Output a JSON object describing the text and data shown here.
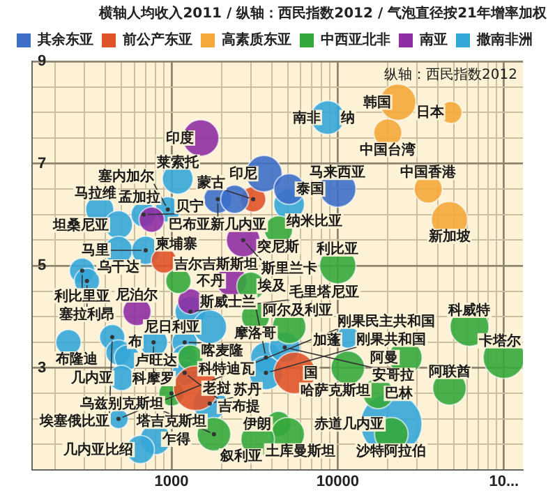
{
  "chart_data": {
    "type": "bubble",
    "title": "横轴人均收入2011 / 纵轴：西民指数2012 / 气泡直径按21年增率加权",
    "log": "x",
    "grid": true,
    "legend": "top",
    "xlim": [
      145,
      130000
    ],
    "ylim": [
      1,
      9
    ],
    "xticks": [
      {
        "value": 200,
        "label": null
      },
      {
        "value": 300,
        "label": null
      },
      {
        "value": 400,
        "label": null
      },
      {
        "value": 500,
        "label": null
      },
      {
        "value": 600,
        "label": null
      },
      {
        "value": 700,
        "label": null
      },
      {
        "value": 800,
        "label": null
      },
      {
        "value": 900,
        "label": null
      },
      1000,
      {
        "value": 2000,
        "label": null
      },
      {
        "value": 3000,
        "label": null
      },
      {
        "value": 4000,
        "label": null
      },
      {
        "value": 5000,
        "label": null
      },
      {
        "value": 6000,
        "label": null
      },
      {
        "value": 7000,
        "label": null
      },
      {
        "value": 8000,
        "label": null
      },
      {
        "value": 9000,
        "label": null
      },
      10000,
      {
        "value": 20000,
        "label": null
      },
      {
        "value": 30000,
        "label": null
      },
      {
        "value": 40000,
        "label": null
      },
      {
        "value": 50000,
        "label": null
      },
      {
        "value": 60000,
        "label": null
      },
      {
        "value": 70000,
        "label": null
      },
      {
        "value": 80000,
        "label": null
      },
      {
        "value": 90000,
        "label": null
      },
      {
        "value": 100000,
        "label": "10..."
      }
    ],
    "yticks": [
      {
        "value": 1.5,
        "label": null
      },
      {
        "value": 2,
        "label": null
      },
      {
        "value": 2.5,
        "label": null
      },
      3,
      {
        "value": 3.5,
        "label": null
      },
      {
        "value": 4,
        "label": null
      },
      {
        "value": 4.5,
        "label": null
      },
      5,
      {
        "value": 5.5,
        "label": null
      },
      {
        "value": 6,
        "label": null
      },
      {
        "value": 6.5,
        "label": null
      },
      7,
      {
        "value": 7.5,
        "label": null
      },
      {
        "value": 8,
        "label": null
      },
      {
        "value": 8.5,
        "label": null
      },
      9
    ],
    "series": [
      {
        "name": "其余东亚",
        "color": "#3d6fc9",
        "x": [
          3600,
          5100,
          10000,
          1900,
          2400
        ],
        "values": [
          6.8,
          6.5,
          6.5,
          6.3,
          6.3
        ],
        "sizes": [
          0.35,
          0.25,
          0.35,
          0.21,
          0.21
        ]
      },
      {
        "name": "前公产东亚",
        "color": "#e0542a",
        "x": [
          3100,
          900,
          5500,
          1400
        ],
        "values": [
          6.3,
          5.1,
          2.9,
          2.6
        ],
        "sizes": [
          0.17,
          0.17,
          0.46,
          0.53
        ]
      },
      {
        "name": "高素质东亚",
        "color": "#f4a93a",
        "x": [
          23000,
          48000,
          20000,
          35000,
          47000
        ],
        "values": [
          8.2,
          8.0,
          7.6,
          6.5,
          5.9
        ],
        "sizes": [
          0.35,
          0.13,
          0.21,
          0.21,
          0.35
        ]
      },
      {
        "name": "中西亚北非",
        "color": "#35a83c",
        "x": [
          4400,
          10000,
          3000,
          3200,
          5100,
          11500,
          17500,
          25500,
          47000,
          62000,
          100000,
          21000,
          4400,
          5000,
          3300,
          1800,
          1100,
          1000,
          1300
        ],
        "values": [
          5.7,
          5.0,
          4.6,
          4.0,
          3.8,
          3.0,
          2.5,
          3.2,
          2.6,
          3.8,
          3.2,
          1.7,
          1.9,
          1.7,
          1.6,
          1.7,
          4.7,
          2.5,
          3.2
        ],
        "sizes": [
          0.21,
          0.35,
          0.21,
          0.21,
          0.3,
          0.3,
          0.25,
          0.3,
          0.3,
          0.4,
          0.46,
          0.3,
          0.17,
          0.3,
          0.3,
          0.3,
          0.17,
          0.17,
          0.17
        ]
      },
      {
        "name": "南亚",
        "color": "#8f2fa3",
        "x": [
          1500,
          2700,
          2300,
          620,
          760,
          1300
        ],
        "values": [
          7.5,
          5.5,
          4.7,
          4.1,
          5.9,
          4.3
        ],
        "sizes": [
          0.35,
          0.3,
          0.25,
          0.21,
          0.17,
          0.17
        ]
      },
      {
        "name": "撒南非洲",
        "color": "#35a6d8",
        "x": [
          8700,
          1090,
          5100,
          370,
          480,
          680,
          950,
          480,
          700,
          290,
          310,
          1300,
          440,
          240,
          480,
          540,
          780,
          1200,
          1200,
          1700,
          1200,
          500,
          1700,
          480,
          800,
          650,
          21000,
          11500,
          3700,
          3700,
          4800
        ],
        "values": [
          7.9,
          6.7,
          6.2,
          6.1,
          5.8,
          6.0,
          6.1,
          5.3,
          5.3,
          4.9,
          4.7,
          4.1,
          3.6,
          3.5,
          3.3,
          3.2,
          3.5,
          3.5,
          3.2,
          3.8,
          2.9,
          2.8,
          2.3,
          2.0,
          1.6,
          1.4,
          1.9,
          3.6,
          3.2,
          2.9,
          3.4
        ],
        "sizes": [
          0.3,
          0.25,
          0.25,
          0.21,
          0.21,
          0.17,
          0.17,
          0.21,
          0.21,
          0.17,
          0.17,
          0.25,
          0.17,
          0.17,
          0.17,
          0.17,
          0.21,
          0.17,
          0.17,
          0.3,
          0.17,
          0.17,
          0.3,
          0.1,
          0.25,
          0.21,
          1,
          0.13,
          0.25,
          0.3,
          0.25
        ]
      }
    ],
    "annotations": [
      {
        "text": "韩国",
        "x": 23000,
        "y": 8.2
      },
      {
        "text": "日本",
        "x": 48000,
        "y": 8.0
      },
      {
        "text": "中国台湾",
        "x": 20000,
        "y": 7.6
      },
      {
        "text": "中国香港",
        "x": 35000,
        "y": 6.5
      },
      {
        "text": "新加坡",
        "x": 47000,
        "y": 5.9
      },
      {
        "text": "印尼",
        "x": 3600,
        "y": 6.8
      },
      {
        "text": "泰国",
        "x": 5100,
        "y": 6.5
      },
      {
        "text": "马来西亚",
        "x": 10000,
        "y": 6.5
      },
      {
        "text": "巴布亚新几内亚",
        "x": 1900,
        "y": 6.3
      },
      {
        "text": "蒙古",
        "x": 3100,
        "y": 6.3
      },
      {
        "text": "柬埔寨",
        "x": 900,
        "y": 5.1
      },
      {
        "text": "国",
        "x": 5500,
        "y": 2.9
      },
      {
        "text": "老挝",
        "x": 1400,
        "y": 2.6
      },
      {
        "text": "突尼斯",
        "x": 4400,
        "y": 5.7
      },
      {
        "text": "利比亚",
        "x": 10000,
        "y": 5.0
      },
      {
        "text": "埃及",
        "x": 3000,
        "y": 4.6
      },
      {
        "text": "摩洛哥",
        "x": 3200,
        "y": 4.0
      },
      {
        "text": "阿尔及利亚",
        "x": 5100,
        "y": 3.8
      },
      {
        "text": "哈萨克斯坦",
        "x": 11500,
        "y": 3.0
      },
      {
        "text": "巴林",
        "x": 17500,
        "y": 2.5
      },
      {
        "text": "阿曼",
        "x": 25500,
        "y": 3.2
      },
      {
        "text": "阿联酋",
        "x": 47000,
        "y": 2.6
      },
      {
        "text": "科威特",
        "x": 62000,
        "y": 3.8
      },
      {
        "text": "卡塔尔",
        "x": 100000,
        "y": 3.2
      },
      {
        "text": "沙特阿拉伯",
        "x": 21000,
        "y": 1.7
      },
      {
        "text": "伊朗",
        "x": 4400,
        "y": 1.9
      },
      {
        "text": "土库曼斯坦",
        "x": 5000,
        "y": 1.7
      },
      {
        "text": "叙利亚",
        "x": 3300,
        "y": 1.6
      },
      {
        "text": "乌兹别克斯坦",
        "x": 1800,
        "y": 1.7
      },
      {
        "text": "吉尔吉斯斯坦",
        "x": 1100,
        "y": 4.7
      },
      {
        "text": "塔吉克斯坦",
        "x": 1000,
        "y": 2.5
      },
      {
        "text": "印度",
        "x": 1500,
        "y": 7.5
      },
      {
        "text": "斯里兰卡",
        "x": 2700,
        "y": 5.5
      },
      {
        "text": "不丹",
        "x": 2300,
        "y": 4.7
      },
      {
        "text": "尼泊尔",
        "x": 620,
        "y": 4.1
      },
      {
        "text": "孟加拉",
        "x": 760,
        "y": 5.9
      },
      {
        "text": "南非",
        "x": 8700,
        "y": 7.9
      },
      {
        "text": "纳",
        "x": 11500,
        "y": 7.9
      },
      {
        "text": "莱索托",
        "x": 1090,
        "y": 6.7
      },
      {
        "text": "纳米比亚",
        "x": 5100,
        "y": 6.2
      },
      {
        "text": "马拉维",
        "x": 370,
        "y": 6.1
      },
      {
        "text": "坦桑尼亚",
        "x": 480,
        "y": 5.8
      },
      {
        "text": "贝宁",
        "x": 680,
        "y": 6.0
      },
      {
        "text": "塞内加尔",
        "x": 950,
        "y": 6.1
      },
      {
        "text": "乌干达",
        "x": 480,
        "y": 5.3
      },
      {
        "text": "马里",
        "x": 700,
        "y": 5.3
      },
      {
        "text": "利比里亚",
        "x": 290,
        "y": 4.9
      },
      {
        "text": "塞拉利昂",
        "x": 310,
        "y": 4.7
      },
      {
        "text": "毛里塔尼亚",
        "x": 1300,
        "y": 4.1
      },
      {
        "text": "埃塞俄比亚",
        "x": 440,
        "y": 3.6
      },
      {
        "text": "布隆迪",
        "x": 240,
        "y": 3.5
      },
      {
        "text": "布",
        "x": 480,
        "y": 3.3
      },
      {
        "text": "卢旺达",
        "x": 540,
        "y": 3.2
      },
      {
        "text": "科摩罗",
        "x": 780,
        "y": 3.5
      },
      {
        "text": "喀麦隆",
        "x": 1200,
        "y": 3.5
      },
      {
        "text": "科特迪瓦",
        "x": 1200,
        "y": 3.2
      },
      {
        "text": "尼日利亚",
        "x": 1700,
        "y": 3.8
      },
      {
        "text": "吉布提",
        "x": 1200,
        "y": 2.9
      },
      {
        "text": "几内亚",
        "x": 500,
        "y": 2.8
      },
      {
        "text": "苏丹",
        "x": 1700,
        "y": 2.3
      },
      {
        "text": "刚果民主共和国",
        "x": 480,
        "y": 2.0
      },
      {
        "text": "乍得",
        "x": 800,
        "y": 1.6
      },
      {
        "text": "几内亚比绍",
        "x": 650,
        "y": 1.4
      },
      {
        "text": "赤道几内亚",
        "x": 21000,
        "y": 1.9
      },
      {
        "text": "加蓬",
        "x": 11500,
        "y": 3.6
      },
      {
        "text": "斯威士兰",
        "x": 3700,
        "y": 3.2
      },
      {
        "text": "刚果共和国",
        "x": 3700,
        "y": 2.9
      },
      {
        "text": "安哥拉",
        "x": 4800,
        "y": 3.4
      },
      "纵轴：西民指数2012"
    ]
  }
}
